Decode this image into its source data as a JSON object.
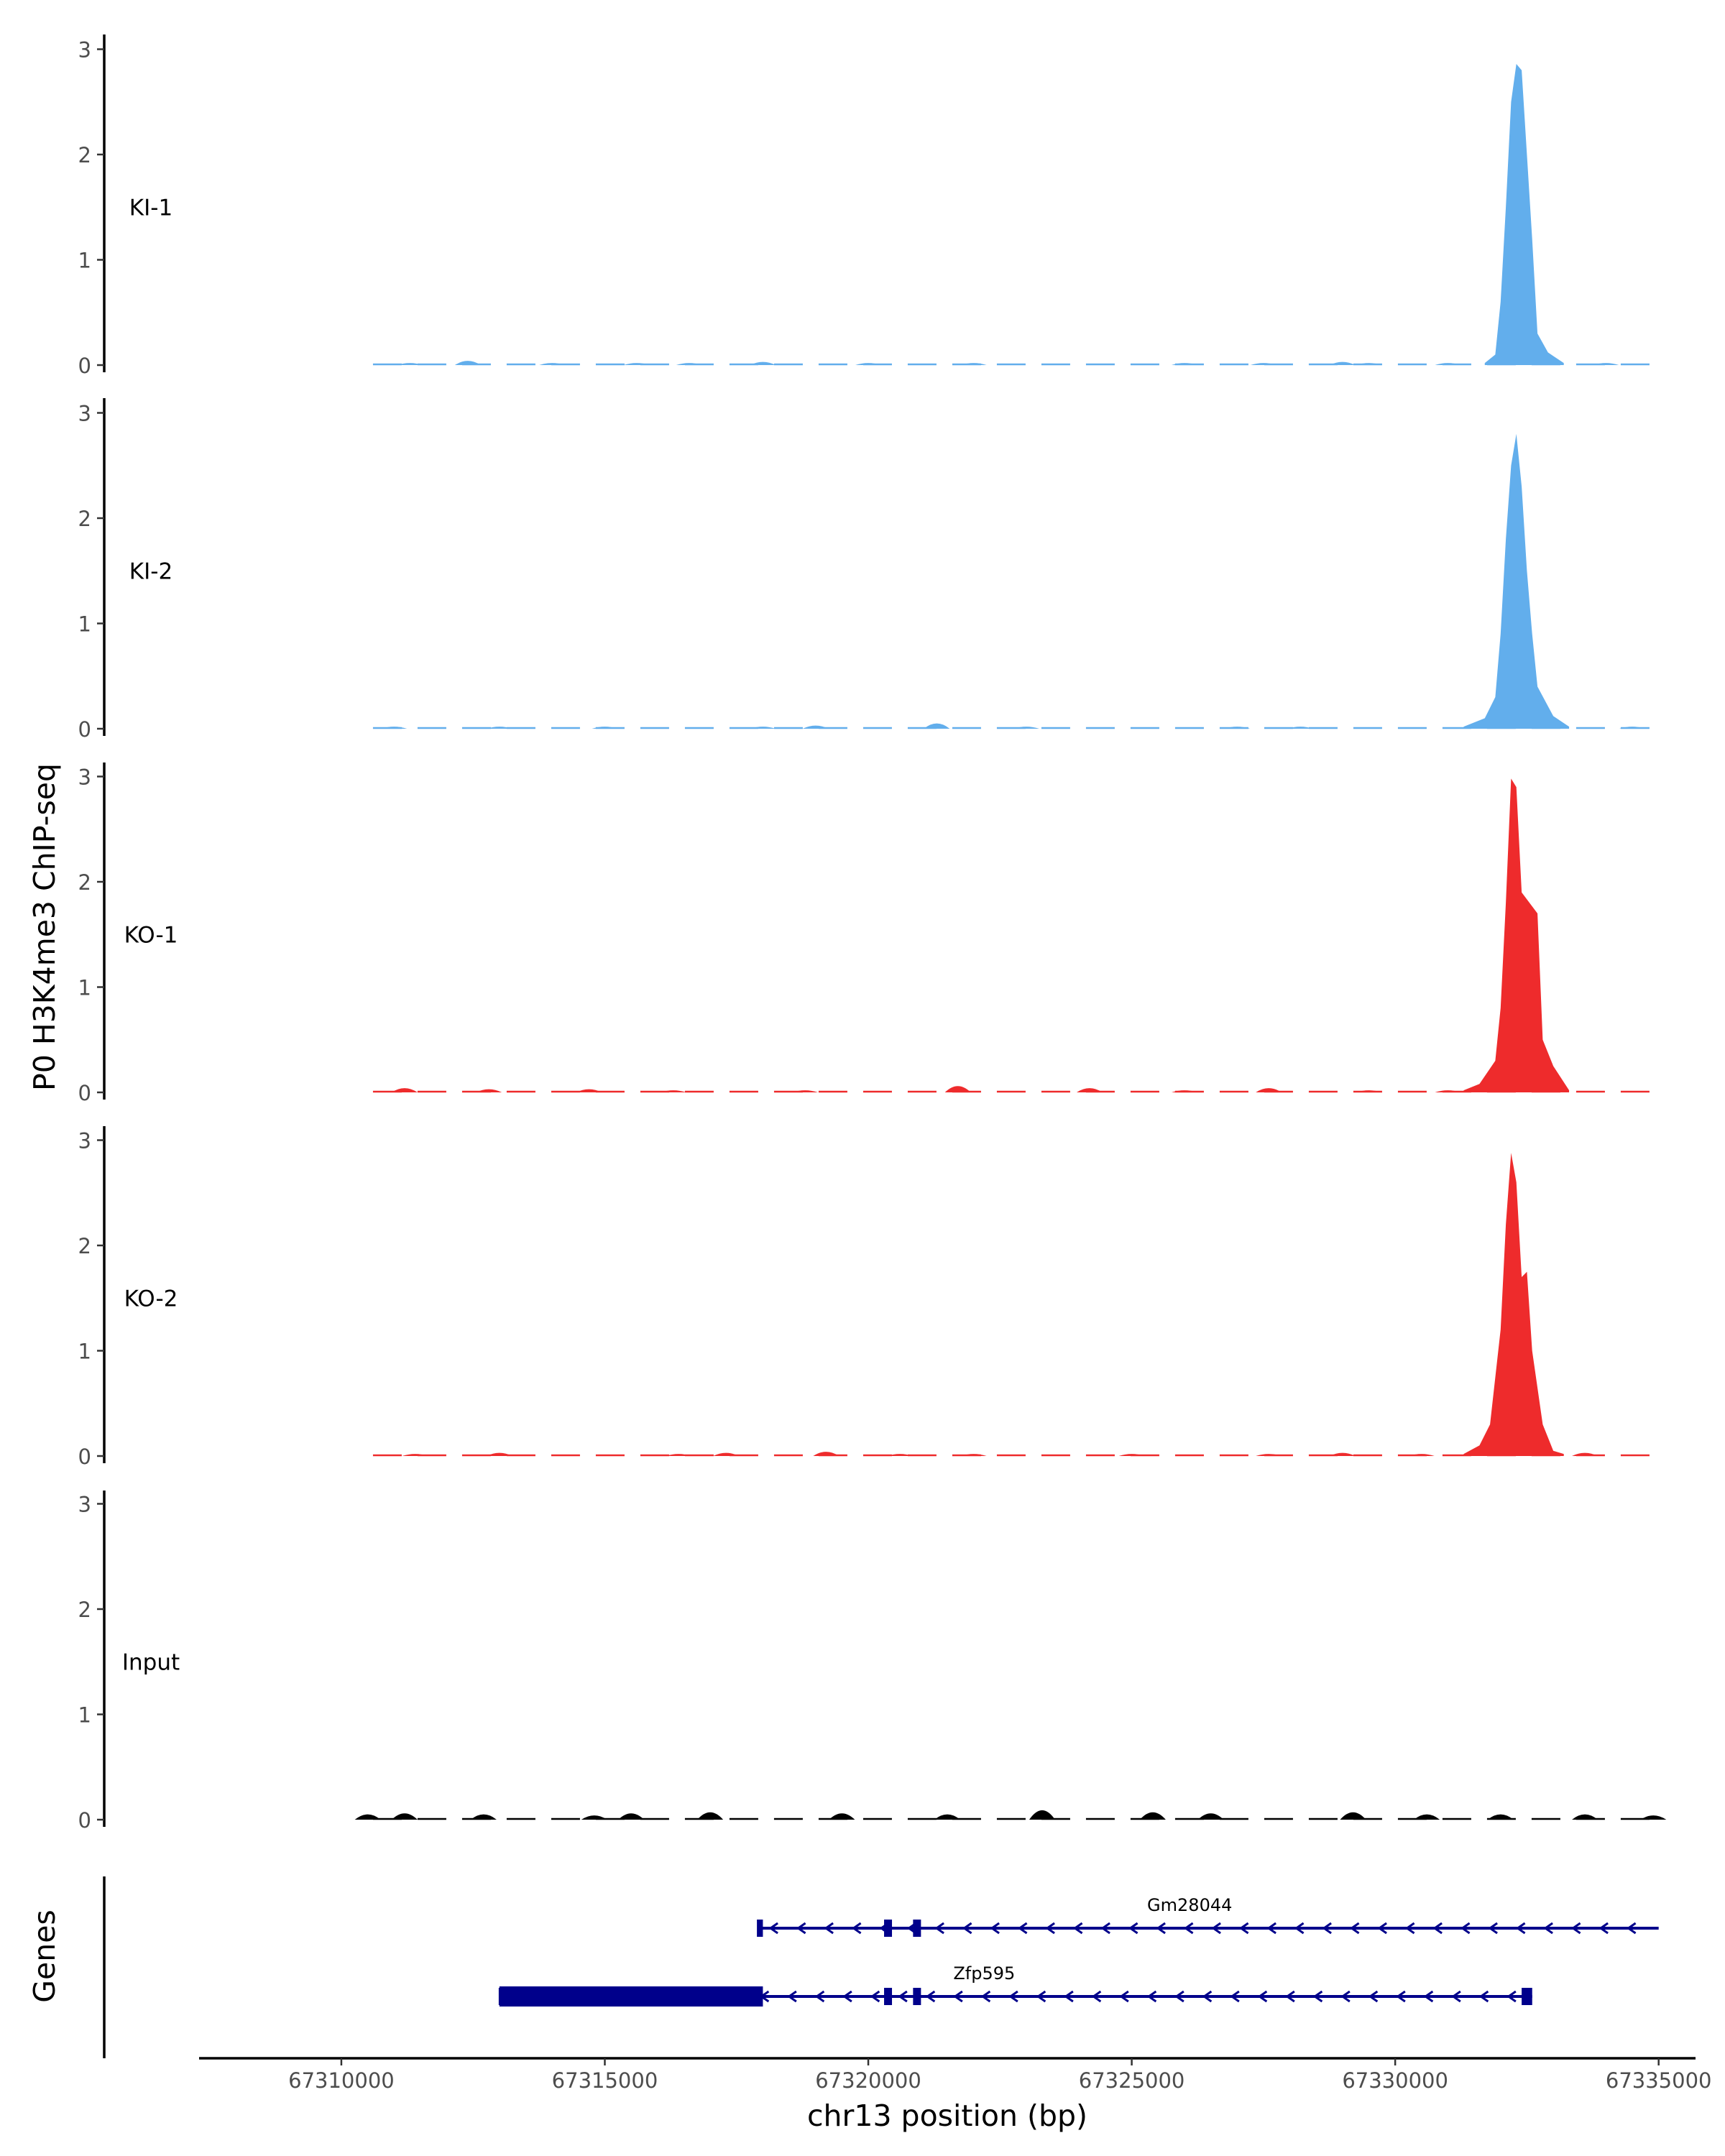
{
  "chart_data": {
    "type": "area",
    "ylabel": "P0 H3K4me3 ChIP-seq",
    "xlabel": "chr13 position (bp)",
    "genes_label": "Genes",
    "xlim": [
      67307300,
      67335700
    ],
    "ylim": [
      0,
      3.1
    ],
    "x_ticks": [
      67310000,
      67315000,
      67320000,
      67325000,
      67330000,
      67335000
    ],
    "x_tick_labels": [
      "67310000",
      "67315000",
      "67320000",
      "67325000",
      "67330000",
      "67335000"
    ],
    "y_ticks": [
      0,
      1,
      2,
      3
    ],
    "y_tick_labels": [
      "0",
      "1",
      "2",
      "3"
    ],
    "tracks": [
      {
        "name": "KI-1",
        "color": "#62AEEC",
        "peaks": [
          [
            67331700,
            0.02
          ],
          [
            67331900,
            0.1
          ],
          [
            67332000,
            0.6
          ],
          [
            67332100,
            1.5
          ],
          [
            67332200,
            2.5
          ],
          [
            67332300,
            2.86
          ],
          [
            67332400,
            2.8
          ],
          [
            67332500,
            2.0
          ],
          [
            67332600,
            1.2
          ],
          [
            67332700,
            0.3
          ],
          [
            67332900,
            0.12
          ],
          [
            67333200,
            0.02
          ]
        ],
        "background": [
          [
            67311300,
            0.02
          ],
          [
            67312400,
            0.04
          ],
          [
            67314000,
            0.02
          ],
          [
            67315600,
            0.02
          ],
          [
            67316600,
            0.02
          ],
          [
            67318000,
            0.03
          ],
          [
            67320000,
            0.02
          ],
          [
            67322000,
            0.02
          ],
          [
            67326000,
            0.02
          ],
          [
            67327500,
            0.02
          ],
          [
            67329000,
            0.03
          ],
          [
            67329500,
            0.02
          ],
          [
            67331000,
            0.02
          ],
          [
            67334000,
            0.02
          ]
        ]
      },
      {
        "name": "KI-2",
        "color": "#62AEEC",
        "peaks": [
          [
            67331300,
            0.02
          ],
          [
            67331700,
            0.1
          ],
          [
            67331900,
            0.3
          ],
          [
            67332000,
            0.9
          ],
          [
            67332100,
            1.8
          ],
          [
            67332200,
            2.5
          ],
          [
            67332300,
            2.8
          ],
          [
            67332400,
            2.3
          ],
          [
            67332500,
            1.5
          ],
          [
            67332600,
            0.9
          ],
          [
            67332700,
            0.4
          ],
          [
            67333000,
            0.12
          ],
          [
            67333300,
            0.02
          ]
        ],
        "background": [
          [
            67311000,
            0.02
          ],
          [
            67313000,
            0.02
          ],
          [
            67315000,
            0.02
          ],
          [
            67318000,
            0.02
          ],
          [
            67319000,
            0.03
          ],
          [
            67321300,
            0.05
          ],
          [
            67323000,
            0.02
          ],
          [
            67327000,
            0.02
          ],
          [
            67328200,
            0.02
          ],
          [
            67334500,
            0.02
          ]
        ]
      },
      {
        "name": "KO-1",
        "color": "#EE2B2C",
        "peaks": [
          [
            67331300,
            0.02
          ],
          [
            67331600,
            0.08
          ],
          [
            67331900,
            0.3
          ],
          [
            67332000,
            0.8
          ],
          [
            67332100,
            1.8
          ],
          [
            67332200,
            2.98
          ],
          [
            67332300,
            2.9
          ],
          [
            67332400,
            1.9
          ],
          [
            67332700,
            1.7
          ],
          [
            67332800,
            0.5
          ],
          [
            67333000,
            0.25
          ],
          [
            67333300,
            0.02
          ]
        ],
        "background": [
          [
            67311200,
            0.04
          ],
          [
            67312800,
            0.03
          ],
          [
            67314700,
            0.03
          ],
          [
            67316300,
            0.02
          ],
          [
            67318800,
            0.02
          ],
          [
            67321700,
            0.06
          ],
          [
            67324200,
            0.04
          ],
          [
            67326000,
            0.02
          ],
          [
            67327600,
            0.04
          ],
          [
            67329500,
            0.02
          ],
          [
            67331000,
            0.02
          ]
        ]
      },
      {
        "name": "KO-2",
        "color": "#EE2B2C",
        "peaks": [
          [
            67331300,
            0.02
          ],
          [
            67331600,
            0.1
          ],
          [
            67331800,
            0.3
          ],
          [
            67332000,
            1.2
          ],
          [
            67332100,
            2.2
          ],
          [
            67332200,
            2.88
          ],
          [
            67332300,
            2.6
          ],
          [
            67332400,
            1.7
          ],
          [
            67332500,
            1.75
          ],
          [
            67332600,
            1.0
          ],
          [
            67332800,
            0.3
          ],
          [
            67333000,
            0.05
          ],
          [
            67333200,
            0.02
          ]
        ],
        "background": [
          [
            67311400,
            0.02
          ],
          [
            67313000,
            0.03
          ],
          [
            67316400,
            0.02
          ],
          [
            67317300,
            0.03
          ],
          [
            67319200,
            0.04
          ],
          [
            67320600,
            0.02
          ],
          [
            67322000,
            0.02
          ],
          [
            67325000,
            0.02
          ],
          [
            67327600,
            0.02
          ],
          [
            67329000,
            0.03
          ],
          [
            67330500,
            0.02
          ],
          [
            67333600,
            0.03
          ]
        ]
      },
      {
        "name": "Input",
        "color": "#000000",
        "peaks": [],
        "background": [
          [
            67310500,
            0.05
          ],
          [
            67311200,
            0.06
          ],
          [
            67312700,
            0.05
          ],
          [
            67314800,
            0.04
          ],
          [
            67315500,
            0.06
          ],
          [
            67317000,
            0.07
          ],
          [
            67319500,
            0.06
          ],
          [
            67321500,
            0.05
          ],
          [
            67323300,
            0.09
          ],
          [
            67325400,
            0.07
          ],
          [
            67326500,
            0.06
          ],
          [
            67329200,
            0.07
          ],
          [
            67330600,
            0.05
          ],
          [
            67332000,
            0.05
          ],
          [
            67333600,
            0.05
          ],
          [
            67334900,
            0.04
          ]
        ]
      }
    ],
    "genes": [
      {
        "name": "Gm28044",
        "strand": "-",
        "start": 67317900,
        "end": 67335000,
        "cds": [],
        "exons": [
          [
            67317900,
            67318000
          ],
          [
            67320300,
            67320450
          ],
          [
            67320850,
            67321000
          ]
        ]
      },
      {
        "name": "Zfp595",
        "strand": "-",
        "start": 67313000,
        "end": 67332600,
        "cds": [
          [
            67313000,
            67318000
          ]
        ],
        "exons": [
          [
            67320300,
            67320450
          ],
          [
            67320850,
            67321000
          ],
          [
            67332400,
            67332600
          ]
        ]
      }
    ]
  }
}
